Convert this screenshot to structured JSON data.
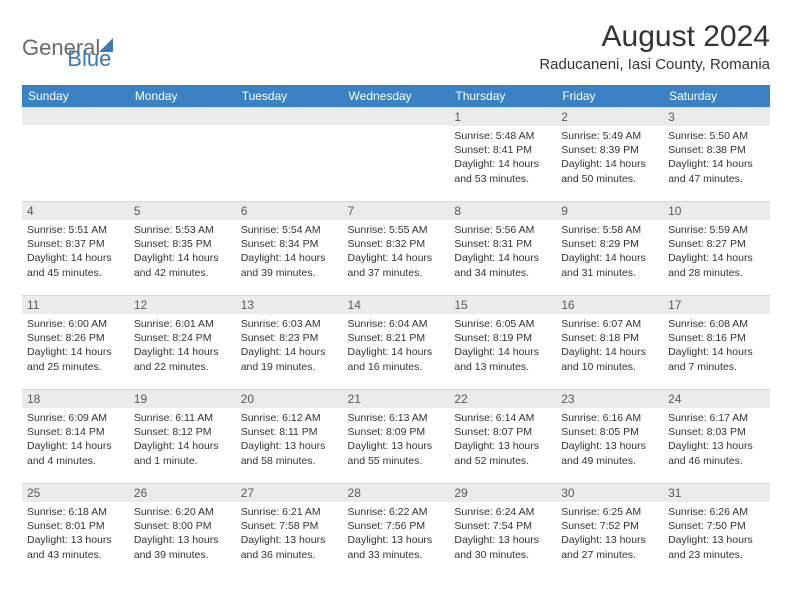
{
  "logo": {
    "text_general": "General",
    "text_blue": "Blue"
  },
  "header": {
    "month_title": "August 2024",
    "location": "Raducaneni, Iasi County, Romania"
  },
  "colors": {
    "header_bg": "#3b82c4",
    "header_text": "#ffffff",
    "day_number_bg": "#ebebeb",
    "body_bg": "#ffffff",
    "logo_blue": "#3a7ab8",
    "logo_gray": "#6b6b6b"
  },
  "day_headers": [
    "Sunday",
    "Monday",
    "Tuesday",
    "Wednesday",
    "Thursday",
    "Friday",
    "Saturday"
  ],
  "weeks": [
    [
      {
        "day": "",
        "sunrise": "",
        "sunset": "",
        "daylight": ""
      },
      {
        "day": "",
        "sunrise": "",
        "sunset": "",
        "daylight": ""
      },
      {
        "day": "",
        "sunrise": "",
        "sunset": "",
        "daylight": ""
      },
      {
        "day": "",
        "sunrise": "",
        "sunset": "",
        "daylight": ""
      },
      {
        "day": "1",
        "sunrise": "Sunrise: 5:48 AM",
        "sunset": "Sunset: 8:41 PM",
        "daylight": "Daylight: 14 hours and 53 minutes."
      },
      {
        "day": "2",
        "sunrise": "Sunrise: 5:49 AM",
        "sunset": "Sunset: 8:39 PM",
        "daylight": "Daylight: 14 hours and 50 minutes."
      },
      {
        "day": "3",
        "sunrise": "Sunrise: 5:50 AM",
        "sunset": "Sunset: 8:38 PM",
        "daylight": "Daylight: 14 hours and 47 minutes."
      }
    ],
    [
      {
        "day": "4",
        "sunrise": "Sunrise: 5:51 AM",
        "sunset": "Sunset: 8:37 PM",
        "daylight": "Daylight: 14 hours and 45 minutes."
      },
      {
        "day": "5",
        "sunrise": "Sunrise: 5:53 AM",
        "sunset": "Sunset: 8:35 PM",
        "daylight": "Daylight: 14 hours and 42 minutes."
      },
      {
        "day": "6",
        "sunrise": "Sunrise: 5:54 AM",
        "sunset": "Sunset: 8:34 PM",
        "daylight": "Daylight: 14 hours and 39 minutes."
      },
      {
        "day": "7",
        "sunrise": "Sunrise: 5:55 AM",
        "sunset": "Sunset: 8:32 PM",
        "daylight": "Daylight: 14 hours and 37 minutes."
      },
      {
        "day": "8",
        "sunrise": "Sunrise: 5:56 AM",
        "sunset": "Sunset: 8:31 PM",
        "daylight": "Daylight: 14 hours and 34 minutes."
      },
      {
        "day": "9",
        "sunrise": "Sunrise: 5:58 AM",
        "sunset": "Sunset: 8:29 PM",
        "daylight": "Daylight: 14 hours and 31 minutes."
      },
      {
        "day": "10",
        "sunrise": "Sunrise: 5:59 AM",
        "sunset": "Sunset: 8:27 PM",
        "daylight": "Daylight: 14 hours and 28 minutes."
      }
    ],
    [
      {
        "day": "11",
        "sunrise": "Sunrise: 6:00 AM",
        "sunset": "Sunset: 8:26 PM",
        "daylight": "Daylight: 14 hours and 25 minutes."
      },
      {
        "day": "12",
        "sunrise": "Sunrise: 6:01 AM",
        "sunset": "Sunset: 8:24 PM",
        "daylight": "Daylight: 14 hours and 22 minutes."
      },
      {
        "day": "13",
        "sunrise": "Sunrise: 6:03 AM",
        "sunset": "Sunset: 8:23 PM",
        "daylight": "Daylight: 14 hours and 19 minutes."
      },
      {
        "day": "14",
        "sunrise": "Sunrise: 6:04 AM",
        "sunset": "Sunset: 8:21 PM",
        "daylight": "Daylight: 14 hours and 16 minutes."
      },
      {
        "day": "15",
        "sunrise": "Sunrise: 6:05 AM",
        "sunset": "Sunset: 8:19 PM",
        "daylight": "Daylight: 14 hours and 13 minutes."
      },
      {
        "day": "16",
        "sunrise": "Sunrise: 6:07 AM",
        "sunset": "Sunset: 8:18 PM",
        "daylight": "Daylight: 14 hours and 10 minutes."
      },
      {
        "day": "17",
        "sunrise": "Sunrise: 6:08 AM",
        "sunset": "Sunset: 8:16 PM",
        "daylight": "Daylight: 14 hours and 7 minutes."
      }
    ],
    [
      {
        "day": "18",
        "sunrise": "Sunrise: 6:09 AM",
        "sunset": "Sunset: 8:14 PM",
        "daylight": "Daylight: 14 hours and 4 minutes."
      },
      {
        "day": "19",
        "sunrise": "Sunrise: 6:11 AM",
        "sunset": "Sunset: 8:12 PM",
        "daylight": "Daylight: 14 hours and 1 minute."
      },
      {
        "day": "20",
        "sunrise": "Sunrise: 6:12 AM",
        "sunset": "Sunset: 8:11 PM",
        "daylight": "Daylight: 13 hours and 58 minutes."
      },
      {
        "day": "21",
        "sunrise": "Sunrise: 6:13 AM",
        "sunset": "Sunset: 8:09 PM",
        "daylight": "Daylight: 13 hours and 55 minutes."
      },
      {
        "day": "22",
        "sunrise": "Sunrise: 6:14 AM",
        "sunset": "Sunset: 8:07 PM",
        "daylight": "Daylight: 13 hours and 52 minutes."
      },
      {
        "day": "23",
        "sunrise": "Sunrise: 6:16 AM",
        "sunset": "Sunset: 8:05 PM",
        "daylight": "Daylight: 13 hours and 49 minutes."
      },
      {
        "day": "24",
        "sunrise": "Sunrise: 6:17 AM",
        "sunset": "Sunset: 8:03 PM",
        "daylight": "Daylight: 13 hours and 46 minutes."
      }
    ],
    [
      {
        "day": "25",
        "sunrise": "Sunrise: 6:18 AM",
        "sunset": "Sunset: 8:01 PM",
        "daylight": "Daylight: 13 hours and 43 minutes."
      },
      {
        "day": "26",
        "sunrise": "Sunrise: 6:20 AM",
        "sunset": "Sunset: 8:00 PM",
        "daylight": "Daylight: 13 hours and 39 minutes."
      },
      {
        "day": "27",
        "sunrise": "Sunrise: 6:21 AM",
        "sunset": "Sunset: 7:58 PM",
        "daylight": "Daylight: 13 hours and 36 minutes."
      },
      {
        "day": "28",
        "sunrise": "Sunrise: 6:22 AM",
        "sunset": "Sunset: 7:56 PM",
        "daylight": "Daylight: 13 hours and 33 minutes."
      },
      {
        "day": "29",
        "sunrise": "Sunrise: 6:24 AM",
        "sunset": "Sunset: 7:54 PM",
        "daylight": "Daylight: 13 hours and 30 minutes."
      },
      {
        "day": "30",
        "sunrise": "Sunrise: 6:25 AM",
        "sunset": "Sunset: 7:52 PM",
        "daylight": "Daylight: 13 hours and 27 minutes."
      },
      {
        "day": "31",
        "sunrise": "Sunrise: 6:26 AM",
        "sunset": "Sunset: 7:50 PM",
        "daylight": "Daylight: 13 hours and 23 minutes."
      }
    ]
  ]
}
